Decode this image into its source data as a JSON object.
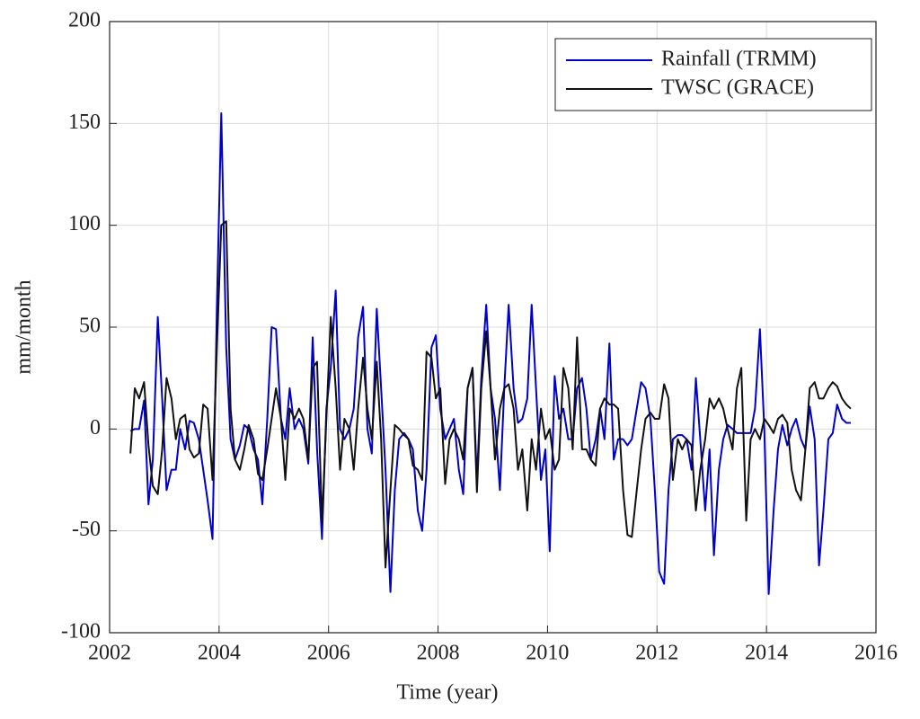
{
  "chart_data": {
    "type": "line",
    "xlabel": "Time (year)",
    "ylabel": "mm/month",
    "xlim": [
      2002,
      2016
    ],
    "xticks": [
      2002,
      2004,
      2006,
      2008,
      2010,
      2012,
      2014,
      2016
    ],
    "ylim": [
      -100,
      200
    ],
    "yticks": [
      -100,
      -50,
      0,
      50,
      100,
      150,
      200
    ],
    "grid": true,
    "legend": "northeast",
    "x": [
      2002.38,
      2002.46,
      2002.54,
      2002.63,
      2002.71,
      2002.79,
      2002.88,
      2002.96,
      2003.04,
      2003.13,
      2003.21,
      2003.29,
      2003.38,
      2003.46,
      2003.54,
      2003.63,
      2003.71,
      2003.79,
      2003.88,
      2003.96,
      2004.04,
      2004.13,
      2004.21,
      2004.29,
      2004.38,
      2004.46,
      2004.54,
      2004.63,
      2004.71,
      2004.79,
      2004.88,
      2004.96,
      2005.04,
      2005.13,
      2005.21,
      2005.29,
      2005.38,
      2005.46,
      2005.54,
      2005.63,
      2005.71,
      2005.79,
      2005.88,
      2005.96,
      2006.04,
      2006.13,
      2006.21,
      2006.29,
      2006.38,
      2006.46,
      2006.54,
      2006.63,
      2006.71,
      2006.79,
      2006.88,
      2006.96,
      2007.04,
      2007.13,
      2007.21,
      2007.29,
      2007.38,
      2007.46,
      2007.54,
      2007.63,
      2007.71,
      2007.79,
      2007.88,
      2007.96,
      2008.04,
      2008.13,
      2008.21,
      2008.29,
      2008.38,
      2008.46,
      2008.54,
      2008.63,
      2008.71,
      2008.79,
      2008.88,
      2008.96,
      2009.04,
      2009.13,
      2009.21,
      2009.29,
      2009.38,
      2009.46,
      2009.54,
      2009.63,
      2009.71,
      2009.79,
      2009.88,
      2009.96,
      2010.04,
      2010.13,
      2010.21,
      2010.29,
      2010.38,
      2010.46,
      2010.54,
      2010.63,
      2010.71,
      2010.79,
      2010.88,
      2010.96,
      2011.04,
      2011.13,
      2011.21,
      2011.29,
      2011.38,
      2011.46,
      2011.54,
      2011.63,
      2011.71,
      2011.79,
      2011.88,
      2011.96,
      2012.04,
      2012.13,
      2012.21,
      2012.29,
      2012.38,
      2012.46,
      2012.54,
      2012.63,
      2012.71,
      2012.79,
      2012.88,
      2012.96,
      2013.04,
      2013.13,
      2013.21,
      2013.29,
      2013.38,
      2013.46,
      2013.54,
      2013.63,
      2013.71,
      2013.79,
      2013.88,
      2013.96,
      2014.04,
      2014.13,
      2014.21,
      2014.29,
      2014.38,
      2014.46,
      2014.54,
      2014.63,
      2014.71,
      2014.79,
      2014.88,
      2014.96,
      2015.04,
      2015.13,
      2015.21,
      2015.29,
      2015.38,
      2015.46,
      2015.54
    ],
    "series": [
      {
        "name": "Rainfall (TRMM)",
        "color": "#0000cc",
        "values": [
          -1,
          0,
          0,
          14,
          -37,
          -15,
          55,
          15,
          -30,
          -20,
          -20,
          0,
          -10,
          4,
          3,
          -5,
          -20,
          -35,
          -54,
          60,
          155,
          40,
          -5,
          -15,
          -8,
          2,
          0,
          -10,
          -15,
          -37,
          5,
          50,
          49,
          5,
          -5,
          20,
          0,
          5,
          0,
          -17,
          45,
          -10,
          -54,
          10,
          30,
          68,
          0,
          -5,
          0,
          10,
          45,
          60,
          0,
          -12,
          59,
          20,
          -20,
          -80,
          -30,
          -5,
          -2,
          -5,
          -10,
          -40,
          -50,
          -20,
          40,
          46,
          10,
          -5,
          0,
          5,
          -20,
          -32,
          20,
          30,
          -25,
          25,
          61,
          20,
          5,
          -30,
          20,
          61,
          20,
          3,
          5,
          15,
          61,
          20,
          -25,
          -10,
          -60,
          26,
          5,
          10,
          -5,
          -5,
          20,
          25,
          10,
          -15,
          -5,
          10,
          -5,
          42,
          -15,
          -5,
          -5,
          -8,
          -5,
          10,
          23,
          20,
          5,
          -30,
          -70,
          -76,
          -30,
          -5,
          -3,
          -3,
          -5,
          -20,
          25,
          -5,
          -40,
          -10,
          -62,
          -20,
          -5,
          2,
          0,
          -2,
          -2,
          -2,
          -2,
          10,
          49,
          0,
          -81,
          -40,
          -10,
          2,
          -8,
          0,
          5,
          -5,
          -10,
          11,
          -5,
          -67,
          -40,
          -5,
          -2,
          12,
          5,
          3,
          3
        ]
      },
      {
        "name": "TWSC (GRACE)",
        "color": "#111111",
        "values": [
          -12,
          20,
          15,
          23,
          -8,
          -28,
          -32,
          -10,
          25,
          15,
          -5,
          5,
          7,
          -10,
          -14,
          -12,
          12,
          10,
          -25,
          40,
          100,
          102,
          10,
          -15,
          -20,
          -10,
          2,
          -5,
          -22,
          -25,
          -10,
          5,
          20,
          5,
          -25,
          10,
          5,
          10,
          5,
          -15,
          30,
          33,
          -46,
          5,
          55,
          20,
          -20,
          5,
          0,
          -20,
          10,
          35,
          10,
          -5,
          33,
          -5,
          -68,
          -30,
          2,
          0,
          -3,
          -5,
          -18,
          -20,
          -25,
          38,
          35,
          15,
          20,
          -27,
          -5,
          0,
          -5,
          -15,
          20,
          30,
          -31,
          20,
          48,
          20,
          -15,
          10,
          20,
          22,
          10,
          -20,
          -10,
          -40,
          -5,
          -20,
          10,
          -5,
          0,
          -20,
          -15,
          30,
          20,
          -10,
          45,
          -10,
          -10,
          -15,
          -18,
          10,
          15,
          12,
          12,
          10,
          -30,
          -52,
          -53,
          -30,
          -10,
          5,
          8,
          5,
          5,
          22,
          15,
          -25,
          -5,
          -10,
          -5,
          -8,
          -40,
          -20,
          -5,
          15,
          10,
          15,
          10,
          0,
          -10,
          20,
          30,
          -45,
          -5,
          0,
          -5,
          5,
          2,
          -2,
          5,
          7,
          3,
          -20,
          -30,
          -35,
          -10,
          20,
          23,
          15,
          15,
          20,
          23,
          21,
          15,
          12,
          10
        ]
      }
    ]
  }
}
